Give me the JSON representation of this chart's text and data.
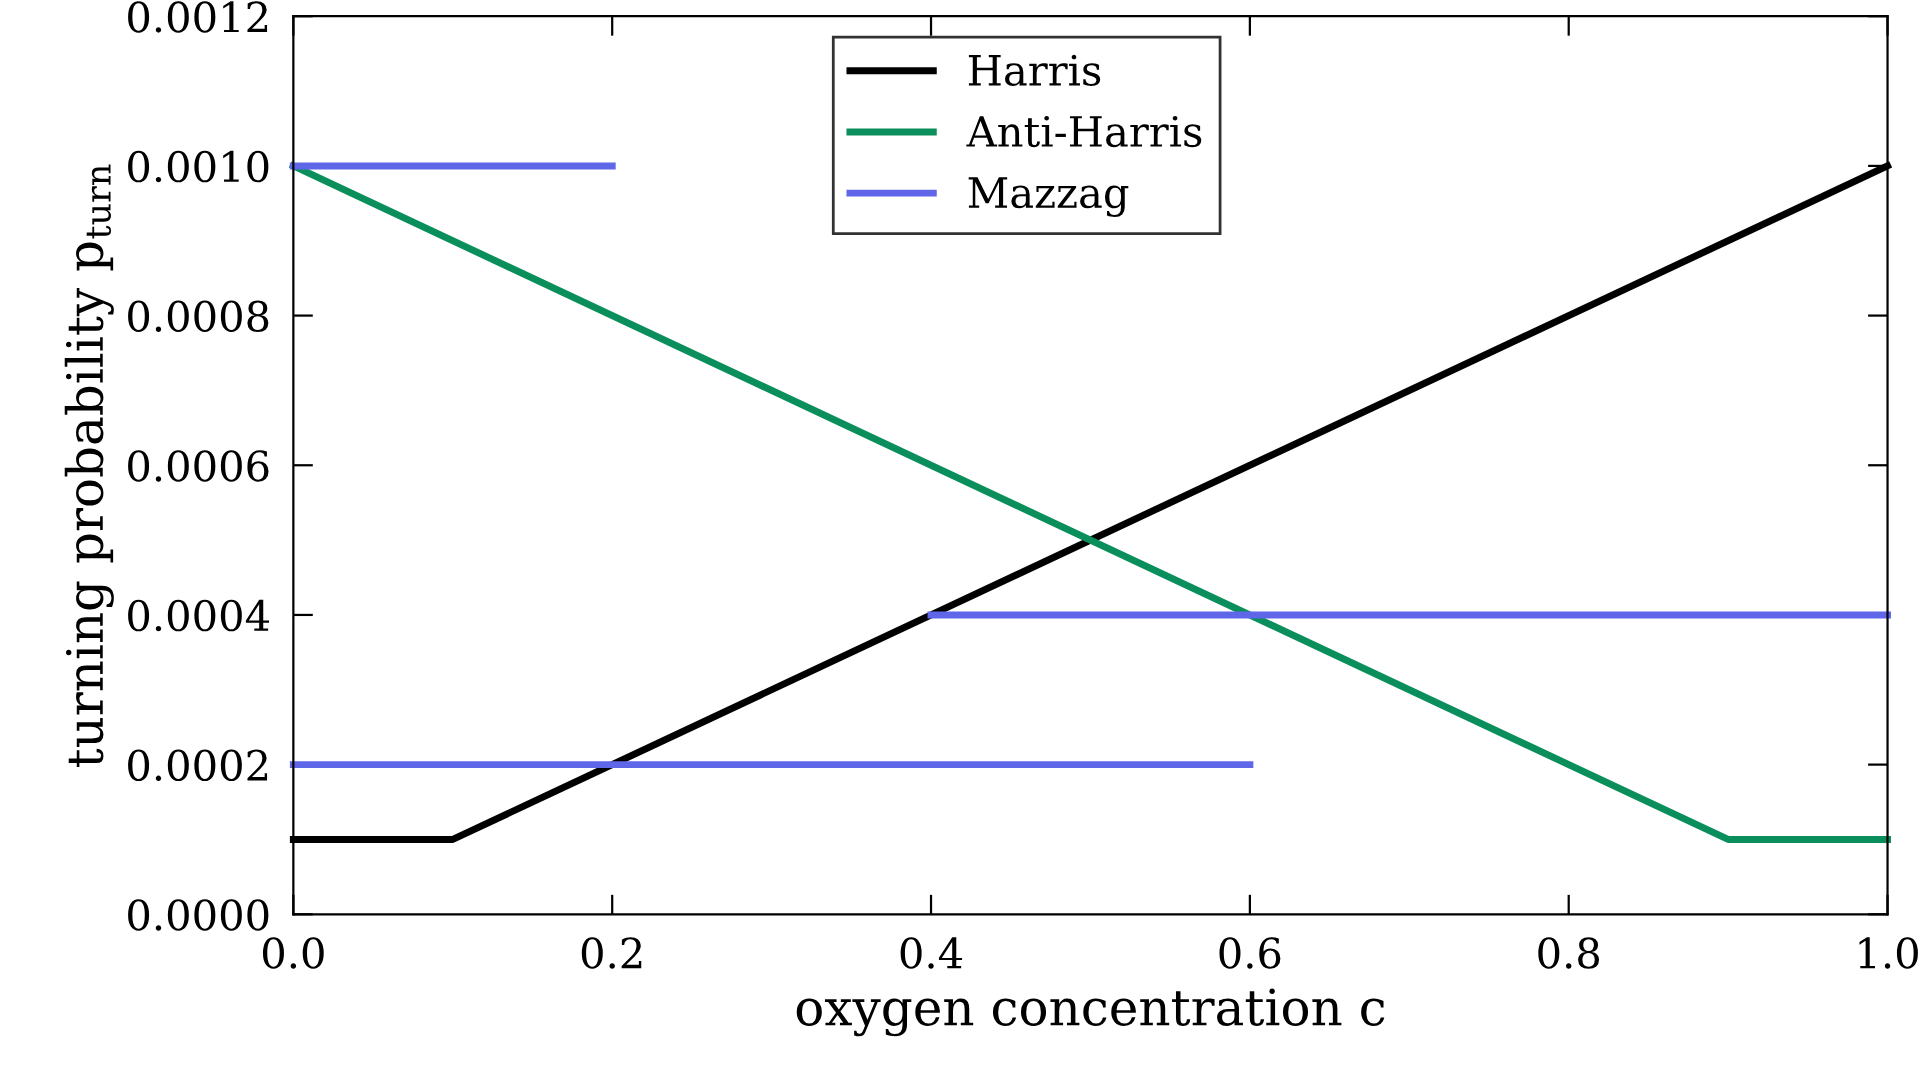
{
  "chart_data": {
    "type": "line",
    "xlabel": "oxygen concentration c",
    "ylabel": "turning probability p$_{turn}$",
    "xlim": [
      0.0,
      1.0
    ],
    "ylim": [
      0.0,
      0.0012
    ],
    "xticks": [
      {
        "value": 0.0,
        "label": "0.0"
      },
      {
        "value": 0.2,
        "label": "0.2"
      },
      {
        "value": 0.4,
        "label": "0.4"
      },
      {
        "value": 0.6,
        "label": "0.6"
      },
      {
        "value": 0.8,
        "label": "0.8"
      },
      {
        "value": 1.0,
        "label": "1.0"
      }
    ],
    "yticks": [
      {
        "value": 0.0,
        "label": "0.0000"
      },
      {
        "value": 0.0002,
        "label": "0.0002"
      },
      {
        "value": 0.0004,
        "label": "0.0004"
      },
      {
        "value": 0.0006,
        "label": "0.0006"
      },
      {
        "value": 0.0008,
        "label": "0.0008"
      },
      {
        "value": 0.001,
        "label": "0.0010"
      },
      {
        "value": 0.0012,
        "label": "0.0012"
      }
    ],
    "grid": false,
    "legend": "top",
    "marker": "none",
    "line_style": "solid",
    "series": [
      {
        "name": "Harris",
        "color": "#000000",
        "x": [
          0.0,
          0.1,
          1.0
        ],
        "values": [
          0.0001,
          0.0001,
          0.001
        ]
      },
      {
        "name": "Anti-Harris",
        "color": "#0a8f5c",
        "x": [
          0.0,
          0.9,
          1.0
        ],
        "values": [
          0.001,
          0.0001,
          0.0001
        ]
      },
      {
        "name": "Mazzag",
        "color": "#5f66e8",
        "x": [
          0.0,
          0.2,
          null,
          0.0,
          0.6,
          null,
          0.4,
          1.0
        ],
        "values": [
          0.001,
          0.001,
          null,
          0.0002,
          0.0002,
          null,
          0.0004,
          0.0004
        ]
      }
    ]
  }
}
